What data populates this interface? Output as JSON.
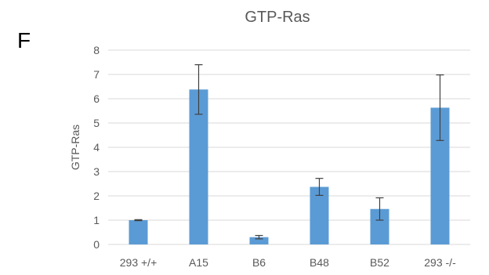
{
  "panel_label": "F",
  "chart_data": {
    "type": "bar",
    "title": "GTP-Ras",
    "xlabel": "",
    "ylabel": "GTP-Ras",
    "ylim": [
      0,
      8
    ],
    "yticks": [
      0,
      1,
      2,
      3,
      4,
      5,
      6,
      7,
      8
    ],
    "grid": true,
    "legend": "none",
    "categories": [
      "293 +/+",
      "A15",
      "B6",
      "B48",
      "B52",
      "293 -/-"
    ],
    "values": [
      1.0,
      6.38,
      0.3,
      2.37,
      1.46,
      5.63
    ],
    "error_bars": [
      0.02,
      1.02,
      0.07,
      0.35,
      0.46,
      1.35
    ],
    "colors": {
      "bar": "#5b9bd5",
      "error": "#404040",
      "grid": "#d9d9d9",
      "text": "#595959"
    }
  }
}
